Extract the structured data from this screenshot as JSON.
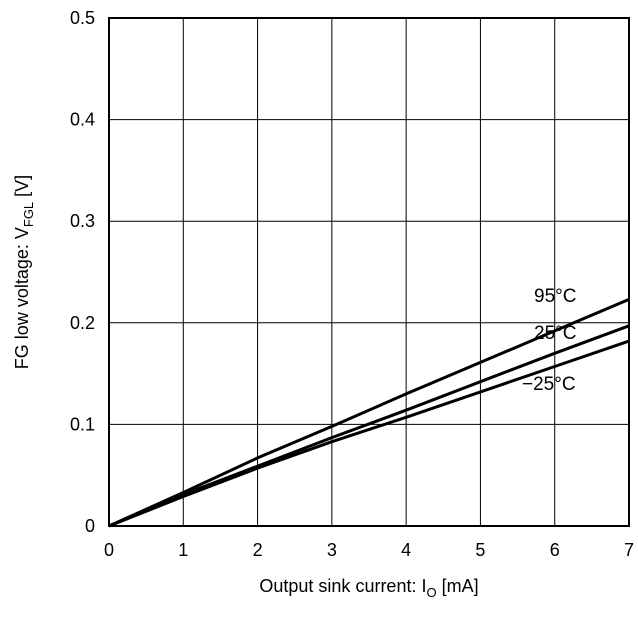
{
  "chart_data": {
    "type": "line",
    "title": "",
    "xlabel": {
      "main": "Output sink current: I",
      "sub": "O",
      "tail": " [mA]"
    },
    "ylabel": {
      "main": "FG low voltage: V",
      "sub": "FGL",
      "tail": " [V]"
    },
    "xlim": [
      0,
      7
    ],
    "ylim": [
      0,
      0.5
    ],
    "xticks": [
      0,
      1,
      2,
      3,
      4,
      5,
      6,
      7
    ],
    "yticks": [
      0,
      0.1,
      0.2,
      0.3,
      0.4,
      0.5
    ],
    "xtick_labels": [
      "0",
      "1",
      "2",
      "3",
      "4",
      "5",
      "6",
      "7"
    ],
    "ytick_labels": [
      "0",
      "0.1",
      "0.2",
      "0.3",
      "0.4",
      "0.5"
    ],
    "grid": true,
    "legend": "none",
    "series": [
      {
        "name": "95°C",
        "x": [
          0,
          1,
          2,
          3,
          4,
          5,
          6,
          7
        ],
        "y": [
          0,
          0.033,
          0.067,
          0.098,
          0.13,
          0.161,
          0.192,
          0.223
        ]
      },
      {
        "name": "25°C",
        "x": [
          0,
          1,
          2,
          3,
          4,
          5,
          6,
          7
        ],
        "y": [
          0,
          0.031,
          0.059,
          0.087,
          0.114,
          0.142,
          0.17,
          0.197
        ]
      },
      {
        "name": "−25°C",
        "x": [
          0,
          1,
          2,
          3,
          4,
          5,
          6,
          7
        ],
        "y": [
          0,
          0.029,
          0.057,
          0.083,
          0.107,
          0.132,
          0.157,
          0.182
        ]
      }
    ],
    "line_color": "#000000"
  }
}
